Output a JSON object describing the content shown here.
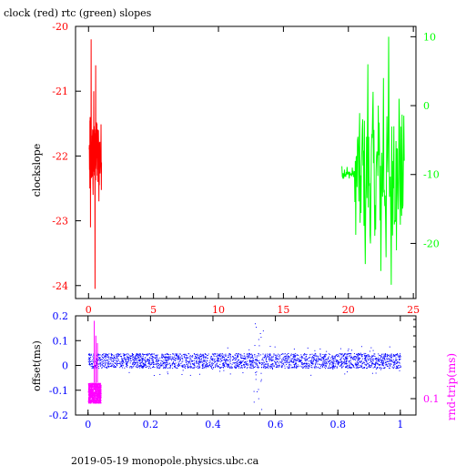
{
  "title": "clock (red) rtc (green) slopes",
  "footer": "2019-05-19 monopole.physics.ubc.ca",
  "colors": {
    "clock": "#ff0000",
    "rtc": "#00ff00",
    "offset": "#0000ff",
    "rndtrip": "#ff00ff",
    "axis": "#000000"
  },
  "chart_data": [
    {
      "type": "line",
      "title": "clock (red) rtc (green) slopes",
      "ylabel": "clockslope",
      "xlim": [
        -1,
        25.2
      ],
      "ylim": [
        -24.2,
        -20
      ],
      "x_ticks": [
        "0",
        "5",
        "10",
        "15",
        "20",
        "25"
      ],
      "y_ticks": [
        "-20",
        "-21",
        "-22",
        "-23",
        "-24"
      ],
      "y2lim": [
        -28,
        11.5
      ],
      "y2_ticks": [
        "10",
        "0",
        "-10",
        "-20"
      ],
      "grid": false,
      "series": [
        {
          "name": "clock",
          "axis": "left",
          "color": "#ff0000",
          "x_range": [
            0,
            1
          ],
          "points": [
            [
              0.05,
              -21.9
            ],
            [
              0.1,
              -22.5
            ],
            [
              0.12,
              -21.4
            ],
            [
              0.15,
              -23.1
            ],
            [
              0.2,
              -20.2
            ],
            [
              0.25,
              -22.2
            ],
            [
              0.3,
              -21.7
            ],
            [
              0.35,
              -22.6
            ],
            [
              0.4,
              -21.0
            ],
            [
              0.45,
              -22.3
            ],
            [
              0.5,
              -24.05
            ],
            [
              0.55,
              -20.6
            ],
            [
              0.6,
              -22.0
            ],
            [
              0.65,
              -21.5
            ],
            [
              0.7,
              -22.4
            ],
            [
              0.75,
              -21.6
            ],
            [
              0.8,
              -22.7
            ],
            [
              0.85,
              -21.8
            ],
            [
              0.9,
              -22.2
            ],
            [
              0.95,
              -21.9
            ],
            [
              1.0,
              -22.1
            ]
          ]
        },
        {
          "name": "rtc",
          "axis": "right",
          "color": "#00ff00",
          "x_range": [
            19.5,
            24.3
          ],
          "points": [
            [
              19.5,
              -8.8
            ],
            [
              19.7,
              -9.3
            ],
            [
              19.9,
              -8.9
            ],
            [
              20.1,
              -9.6
            ],
            [
              20.3,
              -9.0
            ],
            [
              20.5,
              -14.0
            ],
            [
              20.7,
              -5.0
            ],
            [
              20.9,
              -17.0
            ],
            [
              21.1,
              -2.0
            ],
            [
              21.3,
              -23.0
            ],
            [
              21.5,
              6.0
            ],
            [
              21.7,
              -20.0
            ],
            [
              21.9,
              2.0
            ],
            [
              22.1,
              -18.0
            ],
            [
              22.3,
              0.0
            ],
            [
              22.5,
              -24.0
            ],
            [
              22.7,
              4.0
            ],
            [
              22.9,
              -22.0
            ],
            [
              23.1,
              10.0
            ],
            [
              23.3,
              -26.0
            ],
            [
              23.5,
              -3.0
            ],
            [
              23.7,
              -21.0
            ],
            [
              23.9,
              1.0
            ],
            [
              24.1,
              -16.0
            ],
            [
              24.3,
              -8.0
            ]
          ]
        }
      ]
    },
    {
      "type": "scatter",
      "ylabel": "offset(ms)",
      "y2label": "rnd-trip(ms)",
      "xlim": [
        -0.04,
        1.05
      ],
      "ylim": [
        -0.2,
        0.2
      ],
      "x_ticks": [
        "0",
        "0.2",
        "0.4",
        "0.6",
        "0.8",
        "1"
      ],
      "y_ticks": [
        "0.2",
        "0.1",
        "0",
        "-0.1",
        "-0.2"
      ],
      "y2_ticks": [
        "0.1"
      ],
      "grid": false,
      "series": [
        {
          "name": "offset",
          "color": "#0000ff",
          "band_center": 0.02,
          "band_halfwidth": 0.03,
          "x_range": [
            0,
            1
          ],
          "excursion": {
            "x_range": [
              0.53,
              0.56
            ],
            "min": -0.19,
            "max": 0.17
          }
        },
        {
          "name": "rnd-trip",
          "color": "#ff00ff",
          "x_range": [
            0,
            0.04
          ],
          "band": [
            -0.15,
            -0.07
          ],
          "spikes": [
            [
              0.02,
              0.18
            ],
            [
              0.025,
              0.12
            ],
            [
              0.03,
              0.09
            ]
          ]
        }
      ]
    }
  ]
}
